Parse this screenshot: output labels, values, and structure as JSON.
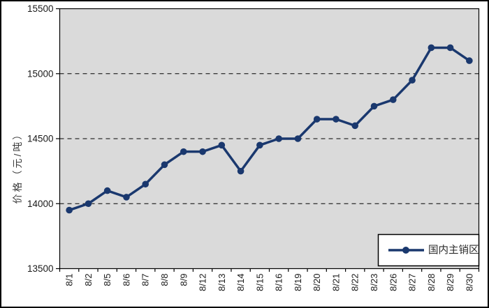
{
  "chart_data": {
    "type": "line",
    "ylabel": "价格（元/吨）",
    "xlabel": "",
    "categories": [
      "8/1",
      "8/2",
      "8/5",
      "8/6",
      "8/7",
      "8/8",
      "8/9",
      "8/12",
      "8/13",
      "8/14",
      "8/15",
      "8/16",
      "8/19",
      "8/20",
      "8/21",
      "8/22",
      "8/23",
      "8/26",
      "8/27",
      "8/28",
      "8/29",
      "8/30"
    ],
    "series": [
      {
        "name": "国内主销区",
        "values": [
          13950,
          14000,
          14100,
          14050,
          14150,
          14300,
          14400,
          14400,
          14450,
          14250,
          14450,
          14500,
          14500,
          14650,
          14650,
          14600,
          14750,
          14800,
          14950,
          15200,
          15200,
          15100
        ]
      }
    ],
    "ylim": [
      13500,
      15500
    ],
    "y_ticks": [
      13500,
      14000,
      14500,
      15000,
      15500
    ],
    "grid": "horizontal-dashed",
    "legend": {
      "label": "国内主销区",
      "position": "bottom-right-inside"
    },
    "colors": {
      "series": "#1a386e",
      "plot_bg": "#dadada",
      "grid_line": "#000000",
      "axis": "#000000",
      "text": "#1a1a1a",
      "legend_bg": "#ffffff",
      "legend_text": "#2b2b2b"
    }
  }
}
